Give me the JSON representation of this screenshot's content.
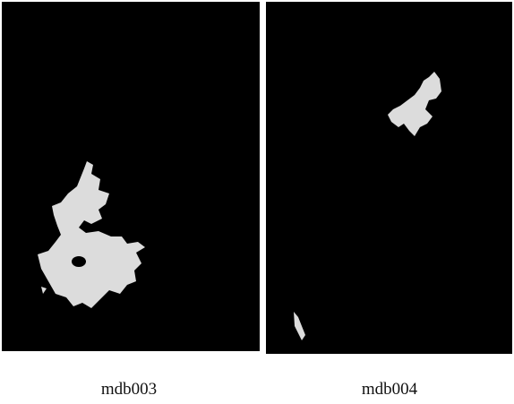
{
  "figures": [
    {
      "caption": "mdb003"
    },
    {
      "caption": "mdb004"
    }
  ]
}
